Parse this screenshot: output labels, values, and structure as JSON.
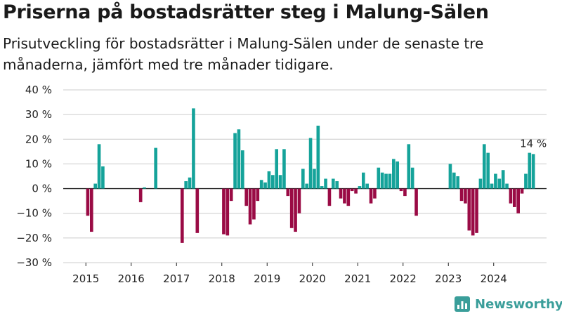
{
  "title": "Priserna på bostadsrätter steg i Malung-Sälen",
  "subtitle": "Prisutveckling för bostadsrätter i Malung-Sälen under de senaste tre månaderna, jämfört med tre månader tidigare.",
  "logo": {
    "text": "Newsworthy",
    "icon": "newsworthy-logo-icon",
    "color": "#3a9e9a"
  },
  "colors": {
    "positive": "#15a39a",
    "negative": "#9a0b45",
    "grid": "#cccccc",
    "zero": "#222222"
  },
  "chart_data": {
    "type": "bar",
    "ylim": [
      -30,
      40
    ],
    "yticks": [
      -30,
      -20,
      -10,
      0,
      10,
      20,
      30,
      40
    ],
    "ytick_labels": [
      "−30 %",
      "−20 %",
      "−10 %",
      "0 %",
      "10 %",
      "20 %",
      "30 %",
      "40 %"
    ],
    "xlim": [
      "2014-07",
      "2025-03"
    ],
    "xticks": [
      "2015",
      "2016",
      "2017",
      "2018",
      "2019",
      "2020",
      "2021",
      "2022",
      "2023",
      "2024"
    ],
    "x": [
      "2015-01",
      "2015-02",
      "2015-03",
      "2015-04",
      "2015-05",
      "2015-06",
      "2016-03",
      "2016-04",
      "2016-07",
      "2017-02",
      "2017-03",
      "2017-04",
      "2017-05",
      "2017-06",
      "2018-01",
      "2018-02",
      "2018-03",
      "2018-04",
      "2018-05",
      "2018-06",
      "2018-07",
      "2018-08",
      "2018-09",
      "2018-10",
      "2018-11",
      "2018-12",
      "2019-01",
      "2019-02",
      "2019-03",
      "2019-04",
      "2019-05",
      "2019-06",
      "2019-07",
      "2019-08",
      "2019-09",
      "2019-10",
      "2019-11",
      "2019-12",
      "2020-01",
      "2020-02",
      "2020-03",
      "2020-04",
      "2020-05",
      "2020-06",
      "2020-07",
      "2020-08",
      "2020-09",
      "2020-10",
      "2020-11",
      "2020-12",
      "2021-01",
      "2021-02",
      "2021-03",
      "2021-04",
      "2021-05",
      "2021-06",
      "2021-07",
      "2021-08",
      "2021-09",
      "2021-10",
      "2021-11",
      "2021-12",
      "2022-01",
      "2022-02",
      "2022-03",
      "2022-04",
      "2022-06",
      "2023-01",
      "2023-02",
      "2023-03",
      "2023-04",
      "2023-05",
      "2023-06",
      "2023-07",
      "2023-08",
      "2023-09",
      "2023-10",
      "2023-11",
      "2023-12",
      "2024-01",
      "2024-02",
      "2024-03",
      "2024-04",
      "2024-05",
      "2024-06",
      "2024-07",
      "2024-08",
      "2024-09",
      "2024-10",
      "2024-11"
    ],
    "values": [
      -11,
      -17.5,
      2,
      18,
      9,
      0,
      -5.5,
      0.5,
      16.5,
      -22,
      3,
      4.5,
      32.5,
      -18,
      -18.5,
      -19,
      -5,
      22.5,
      24,
      15.5,
      -7,
      -14.5,
      -12.5,
      -5,
      3.5,
      2.5,
      7,
      5.5,
      16,
      5.5,
      16,
      -3,
      -16,
      -17.5,
      -10,
      8,
      2,
      20.5,
      8,
      25.5,
      1,
      4,
      -7,
      4,
      3,
      -4,
      -6,
      -7,
      -1,
      -2,
      1,
      6.5,
      2,
      -6,
      -4,
      8.5,
      6.5,
      6,
      6,
      12,
      11,
      -1,
      -3,
      18,
      8.5,
      -11,
      0,
      10,
      6.5,
      5,
      -5,
      -6,
      -17,
      -19,
      -18,
      4,
      18,
      14.5,
      2,
      6,
      4,
      7.5,
      2,
      -6,
      -7.5,
      -10,
      -2,
      6,
      14.5,
      14
    ],
    "annotation": {
      "text": "14 %",
      "x": "2024-11"
    }
  }
}
